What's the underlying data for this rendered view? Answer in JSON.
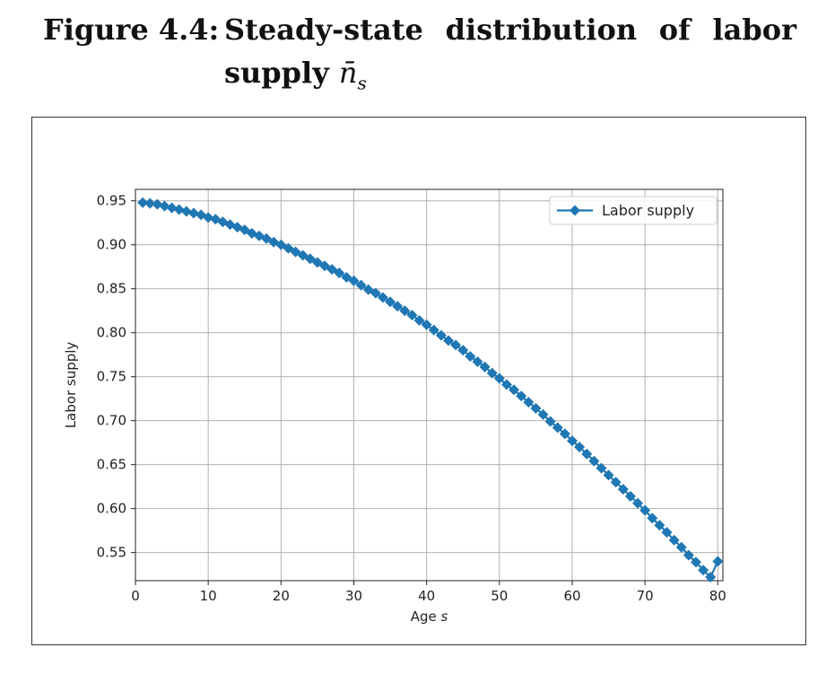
{
  "caption": {
    "label": "Figure 4.4:",
    "line1_words": [
      "Steady-state",
      "distribution",
      "of",
      "labor"
    ],
    "line2_text": "supply ",
    "symbol": "n̄",
    "symbol_sub": "s"
  },
  "chart_data": {
    "type": "line",
    "title": "",
    "xlabel_main": "Age ",
    "xlabel_var": "s",
    "ylabel": "Labor supply",
    "xlim": [
      0,
      80.7
    ],
    "ylim": [
      0.518,
      0.963
    ],
    "xticks": [
      0,
      10,
      20,
      30,
      40,
      50,
      60,
      70,
      80
    ],
    "yticks": [
      0.55,
      0.6,
      0.65,
      0.7,
      0.75,
      0.8,
      0.85,
      0.9,
      0.95
    ],
    "ytick_labels": [
      "0.55",
      "0.60",
      "0.65",
      "0.70",
      "0.75",
      "0.80",
      "0.85",
      "0.90",
      "0.95"
    ],
    "grid": true,
    "legend": {
      "placement": "top-right",
      "entries": [
        "Labor supply"
      ]
    },
    "series": [
      {
        "name": "Labor supply",
        "color": "#1f77b4",
        "marker": "diamond",
        "x": [
          1,
          2,
          3,
          4,
          5,
          6,
          7,
          8,
          9,
          10,
          11,
          12,
          13,
          14,
          15,
          16,
          17,
          18,
          19,
          20,
          21,
          22,
          23,
          24,
          25,
          26,
          27,
          28,
          29,
          30,
          31,
          32,
          33,
          34,
          35,
          36,
          37,
          38,
          39,
          40,
          41,
          42,
          43,
          44,
          45,
          46,
          47,
          48,
          49,
          50,
          51,
          52,
          53,
          54,
          55,
          56,
          57,
          58,
          59,
          60,
          61,
          62,
          63,
          64,
          65,
          66,
          67,
          68,
          69,
          70,
          71,
          72,
          73,
          74,
          75,
          76,
          77,
          78,
          79,
          80
        ],
        "y": [
          0.948,
          0.947,
          0.946,
          0.944,
          0.942,
          0.94,
          0.938,
          0.936,
          0.934,
          0.931,
          0.929,
          0.926,
          0.923,
          0.92,
          0.917,
          0.913,
          0.91,
          0.907,
          0.903,
          0.9,
          0.896,
          0.892,
          0.888,
          0.884,
          0.88,
          0.876,
          0.872,
          0.868,
          0.863,
          0.859,
          0.854,
          0.849,
          0.845,
          0.84,
          0.835,
          0.83,
          0.825,
          0.82,
          0.814,
          0.809,
          0.803,
          0.797,
          0.791,
          0.786,
          0.78,
          0.773,
          0.767,
          0.761,
          0.754,
          0.748,
          0.741,
          0.735,
          0.728,
          0.721,
          0.714,
          0.707,
          0.699,
          0.692,
          0.685,
          0.677,
          0.67,
          0.662,
          0.654,
          0.646,
          0.638,
          0.63,
          0.622,
          0.614,
          0.606,
          0.598,
          0.589,
          0.581,
          0.573,
          0.564,
          0.556,
          0.547,
          0.539,
          0.53,
          0.522,
          0.54
        ]
      }
    ]
  }
}
